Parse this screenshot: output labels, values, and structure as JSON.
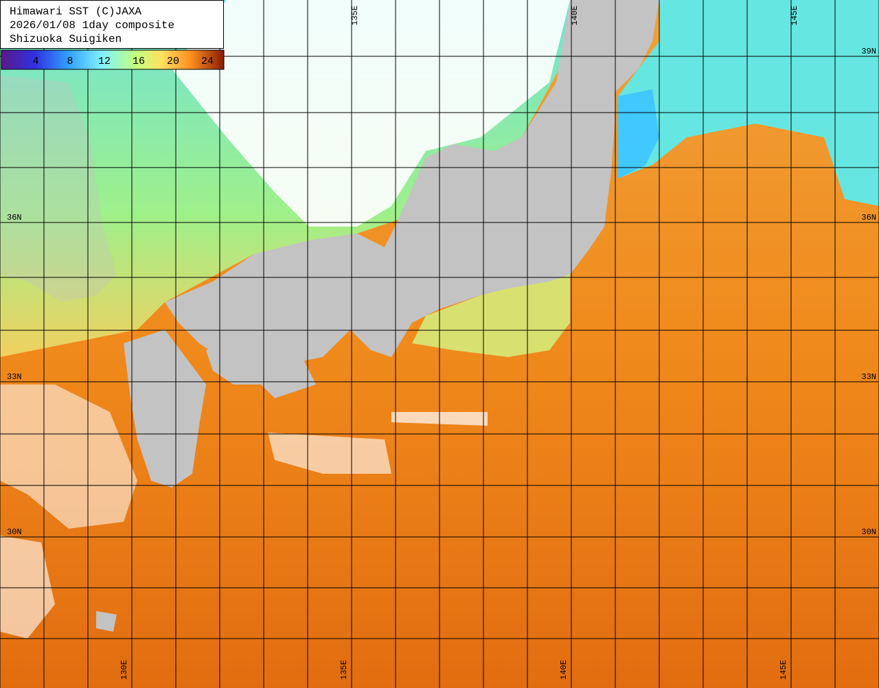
{
  "header": {
    "lines": [
      "Himawari SST (C)JAXA",
      "2026/01/08 1day composite",
      "Shizuoka Suigiken"
    ]
  },
  "legend": {
    "ticks": [
      4,
      8,
      12,
      16,
      20,
      24
    ]
  },
  "labels": {
    "top": [
      "135E",
      "140E",
      "145E"
    ],
    "bottom": [
      "130E",
      "135E",
      "140E",
      "145E"
    ],
    "left": [
      "36N",
      "33N",
      "30N"
    ],
    "right": [
      "39N",
      "36N",
      "33N",
      "30N"
    ]
  }
}
